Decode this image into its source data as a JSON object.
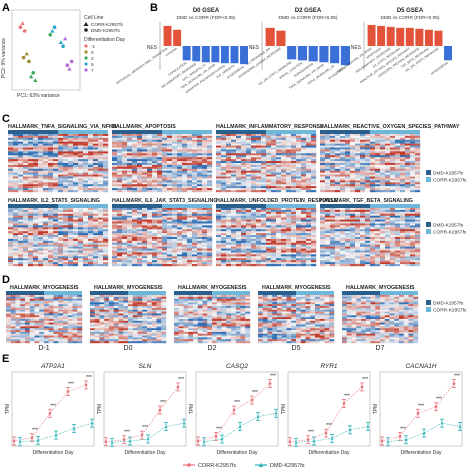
{
  "panels": {
    "A": "A",
    "B": "B",
    "C": "C",
    "D": "D",
    "E": "E"
  },
  "pca": {
    "xlabel": "PC1: 63% variance",
    "ylabel": "PC2: 9% variance",
    "legend_cell_line_title": "Cell Line",
    "cell_lines": [
      {
        "label": "CORR-K2957fs",
        "marker": "triangle"
      },
      {
        "label": "DMD-K2957fs",
        "marker": "circle"
      }
    ],
    "legend_day_title": "Differentiation Day",
    "days": [
      {
        "label": "-1",
        "color": "#e8737a"
      },
      {
        "label": "0",
        "color": "#9b8f2a"
      },
      {
        "label": "2",
        "color": "#3aa856"
      },
      {
        "label": "5",
        "color": "#2aa6c8"
      },
      {
        "label": "7",
        "color": "#b56cd8"
      }
    ]
  },
  "gsea": [
    {
      "title": "D0 GSEA",
      "subtitle": "DMD vs CORR (FDR<0.05)",
      "ylabel": "NES",
      "terms": [
        "EPITHELIAL_MESENCHYMAL_TRANSITION",
        "HYPOXIA",
        "COAGULATION",
        "INFLAMMATORY_RESPONSE",
        "MYC_TARGETS_V1",
        "TNFA_SIGNALING_VIA_NFKB",
        "OXIDATIVE_PHOSPHORYLATION",
        "E2F_TARGETS",
        "MYOGENESIS"
      ],
      "values": [
        2.1,
        1.7,
        -1.5,
        -1.6,
        -1.7,
        -1.7,
        -1.8,
        -1.8,
        -1.9
      ]
    },
    {
      "title": "D2 GSEA",
      "subtitle": "DMD vs CORR (FDR<0.05)",
      "ylabel": "NES",
      "terms": [
        "UV_RESPONSE_DN",
        "INTERFERON_GAMMA_RESPONSE",
        "IL6_JAK_STAT3_SIGNALING",
        "APICAL_JUNCTION",
        "ADIPOGENESIS",
        "TNFA_SIGNALING_VIA_NFKB",
        "KRAS_SIGNALING_UP",
        "MYOGENESIS"
      ],
      "values": [
        1.9,
        1.6,
        -1.4,
        -1.5,
        -1.6,
        -1.7,
        -1.8,
        -2.0
      ]
    },
    {
      "title": "D5 GSEA",
      "subtitle": "DMD vs CORR (FDR<0.05)",
      "ylabel": "NES",
      "terms": [
        "TNFA_SIGNALING_VIA_NFKB",
        "APOPTOSIS",
        "INFLAMMATORY_RESPONSE",
        "IL2_STAT5_SIGNALING",
        "REACTIVE_OXYGEN_SPECIES_PATHWAY",
        "UNFOLDED_PROTEIN_RESPONSE",
        "TGF_BETA_SIGNALING",
        "IL6_JAK_STAT3_SIGNALING",
        "MYOGENESIS"
      ],
      "values": [
        2.2,
        2.1,
        2.0,
        1.9,
        1.9,
        1.8,
        1.7,
        1.6,
        -1.5
      ]
    }
  ],
  "heatmaps_c": [
    "HALLMARK_TNFA_SIGNALING_VIA_NFKB",
    "HALLMARK_APOPTOSIS",
    "HALLMARK_INFLAMMATORY_RESPONSE",
    "HALLMARK_REACTIVE_OXYGEN_SPECIES_PATHWAY",
    "HALLMARK_IL2_STAT5_SIGNALING",
    "HALLMARK_IL6_JAK_STAT3_SIGNALING",
    "HALLMARK_UNFOLDED_PROTEIN_RESPONSE",
    "HALLMARK_TGF_BETA_SIGNALING"
  ],
  "heatmaps_d": [
    {
      "title": "HALLMARK_MYOGENESIS",
      "day": "D-1"
    },
    {
      "title": "HALLMARK_MYOGENESIS",
      "day": "D0"
    },
    {
      "title": "HALLMARK_MYOGENESIS",
      "day": "D2"
    },
    {
      "title": "HALLMARK_MYOGENESIS",
      "day": "D5"
    },
    {
      "title": "HALLMARK_MYOGENESIS",
      "day": "D7"
    }
  ],
  "heat_legend": [
    {
      "label": "DMD-K2957fs",
      "color": "#2b5f8e"
    },
    {
      "label": "CORR-K2957fs",
      "color": "#6fb7d9"
    }
  ],
  "colors": {
    "up": "#e2533a",
    "down": "#3a6fd8",
    "heat_red": "#c0392b",
    "heat_blue": "#2e6db3",
    "corr": "#e8737a",
    "dmd": "#2ab3b8"
  },
  "chart_data": {
    "type": "scatter",
    "genes": [
      "ATP2A1",
      "SLN",
      "CASQ2",
      "RYR1",
      "CACNA1H"
    ],
    "ylabel": "TPM",
    "xlabel": "Differentiation Day",
    "series": [
      {
        "name": "CORR-K2957fs",
        "marker": "circle"
      },
      {
        "name": "DMD-K2957fs",
        "marker": "triangle"
      }
    ],
    "gene_values": {
      "ATP2A1": {
        "corr": [
          0.03,
          0.08,
          0.45,
          0.78,
          0.88
        ],
        "dmd": [
          0.02,
          0.04,
          0.12,
          0.22,
          0.3
        ]
      },
      "SLN": {
        "corr": [
          0.02,
          0.05,
          0.12,
          0.5,
          0.85
        ],
        "dmd": [
          0.01,
          0.03,
          0.06,
          0.25,
          0.3
        ]
      },
      "CASQ2": {
        "corr": [
          0.03,
          0.1,
          0.5,
          0.65,
          0.9
        ],
        "dmd": [
          0.02,
          0.06,
          0.25,
          0.4,
          0.45
        ]
      },
      "RYR1": {
        "corr": [
          0.02,
          0.05,
          0.15,
          0.6,
          0.85
        ],
        "dmd": [
          0.01,
          0.03,
          0.07,
          0.2,
          0.25
        ]
      },
      "CACNA1H": {
        "corr": [
          0.03,
          0.1,
          0.45,
          0.55,
          0.9
        ],
        "dmd": [
          0.02,
          0.05,
          0.15,
          0.3,
          0.25
        ]
      }
    }
  }
}
